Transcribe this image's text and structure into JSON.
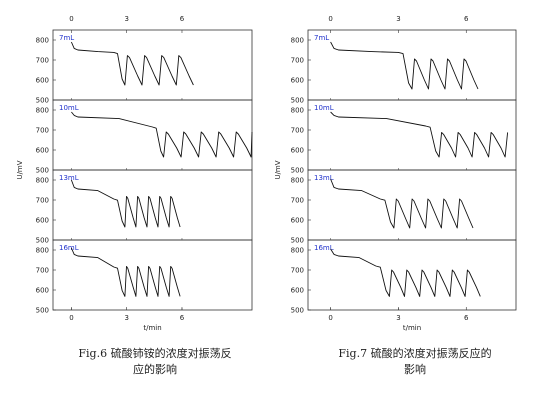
{
  "figures": [
    {
      "caption": "Fig.6 硫酸铈铵的浓度对振荡反应的影响",
      "caption_lines": [
        "Fig.6 硫酸铈铵的浓度对振荡反",
        "应的影响"
      ]
    },
    {
      "caption": "Fig.7 硫酸的浓度对振荡反应的影响",
      "caption_lines": [
        "Fig.7 硫酸的浓度对振荡反应的",
        "影响"
      ]
    }
  ],
  "chart_data": [
    {
      "type": "line",
      "figure": "Fig.6",
      "xlabel": "t/min",
      "ylabel": "U/mV",
      "xlim": [
        -1,
        9.8
      ],
      "xticks": [
        0,
        3,
        6
      ],
      "ylim": [
        500,
        850
      ],
      "yticks": [
        500,
        600,
        700,
        800
      ],
      "panels": [
        {
          "label": "7mL",
          "start_value": 790,
          "plateau": 750,
          "drop_end": 738,
          "induction_min": 2.6,
          "period_min": 0.93,
          "high": 722,
          "low": 575,
          "end_min": 7.4,
          "clip_end": false
        },
        {
          "label": "10mL",
          "start_value": 790,
          "plateau": 765,
          "drop_end": 715,
          "induction_min": 4.7,
          "period_min": 0.95,
          "high": 690,
          "low": 565,
          "end_min": 9.8,
          "clip_end": true
        },
        {
          "label": "13mL",
          "start_value": 800,
          "plateau": 755,
          "drop_end": 705,
          "induction_min": 2.6,
          "period_min": 0.6,
          "high": 718,
          "low": 565,
          "end_min": 6.2,
          "clip_end": false
        },
        {
          "label": "16mL",
          "start_value": 810,
          "plateau": 770,
          "drop_end": 715,
          "induction_min": 2.6,
          "period_min": 0.6,
          "high": 718,
          "low": 568,
          "end_min": 6.2,
          "clip_end": false
        }
      ]
    },
    {
      "type": "line",
      "figure": "Fig.7",
      "xlabel": "t/min",
      "ylabel": "U/mV",
      "xlim": [
        -1,
        8.2
      ],
      "xticks": [
        0,
        3,
        6
      ],
      "ylim": [
        500,
        850
      ],
      "yticks": [
        500,
        600,
        700,
        800
      ],
      "panels": [
        {
          "label": "7mL",
          "start_value": 790,
          "plateau": 750,
          "drop_end": 738,
          "induction_min": 3.3,
          "period_min": 0.73,
          "high": 705,
          "low": 555,
          "end_min": 7.0,
          "clip_end": false
        },
        {
          "label": "10mL",
          "start_value": 790,
          "plateau": 765,
          "drop_end": 720,
          "induction_min": 4.5,
          "period_min": 0.73,
          "high": 688,
          "low": 565,
          "end_min": 8.2,
          "clip_end": true
        },
        {
          "label": "13mL",
          "start_value": 805,
          "plateau": 755,
          "drop_end": 705,
          "induction_min": 2.5,
          "period_min": 0.7,
          "high": 705,
          "low": 560,
          "end_min": 6.9,
          "clip_end": false
        },
        {
          "label": "16mL",
          "start_value": 805,
          "plateau": 770,
          "drop_end": 720,
          "induction_min": 2.3,
          "period_min": 0.67,
          "high": 700,
          "low": 568,
          "end_min": 6.9,
          "clip_end": false
        }
      ]
    }
  ]
}
